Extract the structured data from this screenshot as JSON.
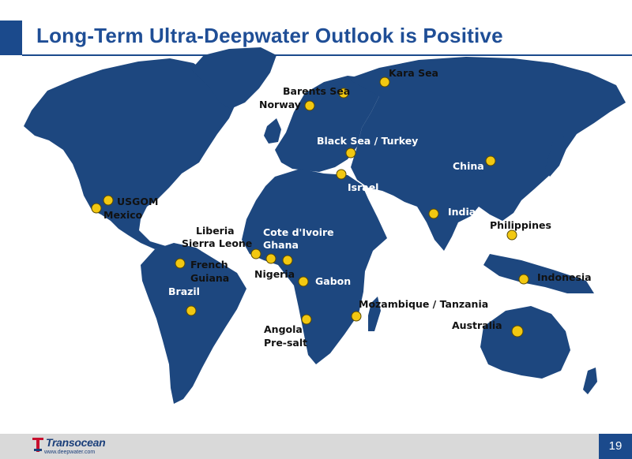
{
  "slide": {
    "title": "Long-Term Ultra-Deepwater Outlook is Positive",
    "page_number": "19"
  },
  "brand": {
    "logo_text": "Transocean",
    "url": "www.deepwater.com",
    "primary_color": "#1b4a8c",
    "map_color": "#1d477f",
    "marker_color": "#f2c811"
  },
  "locations": [
    {
      "id": "kara-sea",
      "label": "Kara Sea"
    },
    {
      "id": "barents-sea",
      "label": "Barents Sea"
    },
    {
      "id": "norway",
      "label": "Norway"
    },
    {
      "id": "black-sea-turkey",
      "label": "Black Sea / Turkey"
    },
    {
      "id": "israel",
      "label": "Israel"
    },
    {
      "id": "china",
      "label": "China"
    },
    {
      "id": "india",
      "label": "India"
    },
    {
      "id": "philippines",
      "label": "Philippines"
    },
    {
      "id": "indonesia",
      "label": "Indonesia"
    },
    {
      "id": "australia",
      "label": "Australia"
    },
    {
      "id": "usgom",
      "label": "USGOM"
    },
    {
      "id": "mexico",
      "label": "Mexico"
    },
    {
      "id": "liberia",
      "label": "Liberia"
    },
    {
      "id": "sierra-leone",
      "label": "Sierra Leone"
    },
    {
      "id": "cote-divoire",
      "label": "Cote d'Ivoire"
    },
    {
      "id": "ghana",
      "label": "Ghana"
    },
    {
      "id": "nigeria",
      "label": "Nigeria"
    },
    {
      "id": "gabon",
      "label": "Gabon"
    },
    {
      "id": "french-guiana-1",
      "label": "French"
    },
    {
      "id": "french-guiana-2",
      "label": "Guiana"
    },
    {
      "id": "brazil",
      "label": "Brazil"
    },
    {
      "id": "mozambique-tanzania",
      "label": "Mozambique / Tanzania"
    },
    {
      "id": "angola-1",
      "label": "Angola"
    },
    {
      "id": "angola-2",
      "label": "Pre-salt"
    }
  ]
}
